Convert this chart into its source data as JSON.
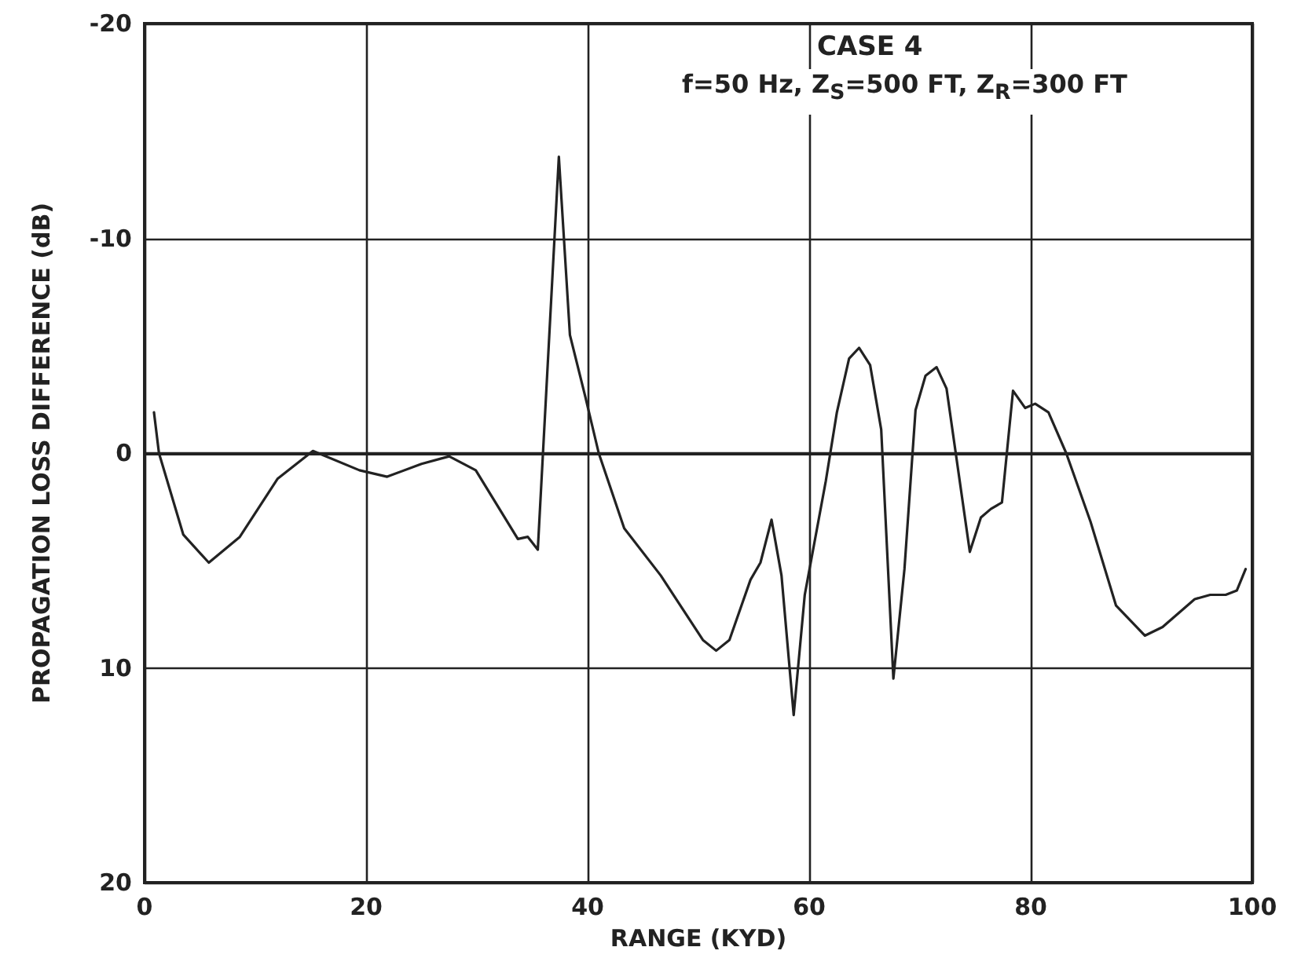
{
  "chart_data": {
    "type": "line",
    "title": "CASE 4",
    "subtitle": "f=50 Hz, Z$_{S}$=500 FT, Z$_{R}$=300 FT",
    "xlabel": "RANGE (KYD)",
    "ylabel": "PROPAGATION LOSS DIFFERENCE (dB)",
    "xlim": [
      0,
      100
    ],
    "xticks": [
      0,
      20,
      40,
      60,
      80,
      100
    ],
    "ylim": [
      20,
      -20
    ],
    "yticks": [
      -20,
      -10,
      0,
      10,
      20
    ],
    "grid": true,
    "marker": "none",
    "line_style": "solid",
    "series": [
      {
        "color": "#222222",
        "x": [
          0.85,
          1.3,
          3.5,
          5.8,
          8.6,
          12,
          15.2,
          19.4,
          21.9,
          25,
          27.5,
          29.9,
          33.7,
          34.6,
          35.5,
          37.4,
          38.4,
          39.8,
          41.0,
          43.3,
          46.6,
          50.4,
          51.6,
          52.8,
          54.7,
          55.6,
          56.6,
          57.5,
          58.6,
          59.6,
          61.5,
          62.5,
          63.6,
          64.5,
          65.5,
          66.5,
          67.6,
          68.6,
          69.6,
          70.5,
          71.5,
          72.4,
          74.5,
          75.5,
          76.4,
          77.4,
          78.4,
          79.5,
          80.4,
          81.6,
          83.2,
          85.4,
          87.7,
          90.3,
          91.9,
          94.8,
          96.2,
          97.6,
          98.6,
          99.4
        ],
        "values": [
          -1.9,
          0,
          3.8,
          5.1,
          3.9,
          1.2,
          -0.1,
          0.8,
          1.1,
          0.5,
          0.15,
          0.8,
          4.0,
          3.9,
          4.5,
          -13.8,
          -5.5,
          -2.6,
          0,
          3.5,
          5.7,
          8.7,
          9.2,
          8.7,
          5.9,
          5.1,
          3.1,
          5.7,
          12.2,
          6.6,
          1.3,
          -1.9,
          -4.4,
          -4.9,
          -4.1,
          -1.1,
          10.5,
          5.4,
          -2.0,
          -3.6,
          -4.0,
          -3.0,
          4.6,
          3.0,
          2.6,
          2.3,
          -2.9,
          -2.1,
          -2.3,
          -1.9,
          0,
          3.2,
          7.1,
          8.5,
          8.1,
          6.8,
          6.6,
          6.6,
          6.4,
          5.4
        ]
      }
    ]
  }
}
